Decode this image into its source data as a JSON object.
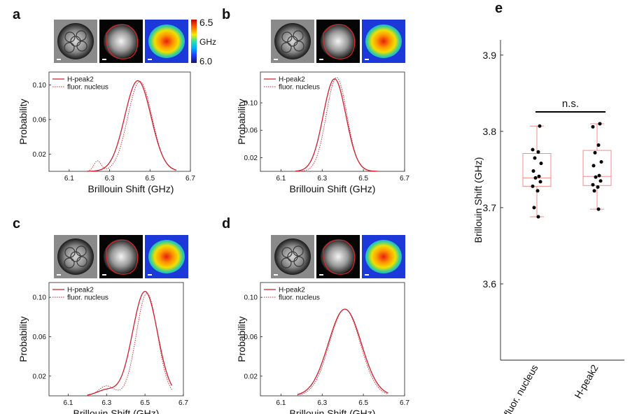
{
  "colors": {
    "curve": "#d21e2d",
    "box": "#f08c8c",
    "points": "#000000",
    "sig_bar": "#000000"
  },
  "colorbar": {
    "max_label": "6.5",
    "unit_label": "GHz",
    "min_label": "6.0"
  },
  "distribution_panels": [
    {
      "panel_label": "a",
      "x_ticks": [
        "6.1",
        "6.3",
        "6.5",
        "6.7"
      ],
      "y_ticks": [
        "0.02",
        "0.06",
        "0.10"
      ],
      "ylim": [
        0,
        0.115
      ],
      "xlim": [
        6.0,
        6.7
      ],
      "xlabel": "Brillouin Shift (GHz)",
      "ylabel": "Probability",
      "legend": [
        "H-peak2",
        "fluor. nucleus"
      ],
      "solid": {
        "mu": 6.44,
        "sigma": 0.065,
        "peak": 0.105,
        "bump_mu": 0,
        "bump_sigma": 0.03,
        "bump_h": 0
      },
      "dotted": {
        "mu": 6.45,
        "sigma": 0.06,
        "peak": 0.104,
        "bump_mu": 6.24,
        "bump_sigma": 0.018,
        "bump_h": 0.012
      },
      "x_range": [
        6.19,
        6.63
      ]
    },
    {
      "panel_label": "b",
      "x_ticks": [
        "6.1",
        "6.3",
        "6.5",
        "6.7"
      ],
      "y_ticks": [
        "0.02",
        "0.06",
        "0.10"
      ],
      "ylim": [
        0,
        0.145
      ],
      "xlim": [
        6.0,
        6.7
      ],
      "xlabel": "Brillouin Shift (GHz)",
      "ylabel": "Probability",
      "legend": [
        "H-peak2",
        "fluor. nucleus"
      ],
      "solid": {
        "mu": 6.36,
        "sigma": 0.055,
        "peak": 0.135,
        "bump_mu": 0,
        "bump_sigma": 0.03,
        "bump_h": 0
      },
      "dotted": {
        "mu": 6.37,
        "sigma": 0.05,
        "peak": 0.137,
        "bump_mu": 0,
        "bump_sigma": 0.03,
        "bump_h": 0
      },
      "x_range": [
        6.17,
        6.57
      ]
    },
    {
      "panel_label": "c",
      "x_ticks": [
        "6.1",
        "6.3",
        "6.5",
        "6.7"
      ],
      "y_ticks": [
        "0.02",
        "0.06",
        "0.10"
      ],
      "ylim": [
        0,
        0.115
      ],
      "xlim": [
        6.0,
        6.7
      ],
      "xlabel": "Brillouin Shift (GHz)",
      "ylabel": "Probability",
      "legend": [
        "H-peak2",
        "fluor. nucleus"
      ],
      "solid": {
        "mu": 6.5,
        "sigma": 0.065,
        "peak": 0.106,
        "bump_mu": 6.3,
        "bump_sigma": 0.05,
        "bump_h": 0.006
      },
      "dotted": {
        "mu": 6.51,
        "sigma": 0.055,
        "peak": 0.104,
        "bump_mu": 6.3,
        "bump_sigma": 0.04,
        "bump_h": 0.01
      },
      "x_range": [
        6.2,
        6.64
      ]
    },
    {
      "panel_label": "d",
      "x_ticks": [
        "6.1",
        "6.3",
        "6.5",
        "6.7"
      ],
      "y_ticks": [
        "0.02",
        "0.06",
        "0.10"
      ],
      "ylim": [
        0,
        0.115
      ],
      "xlim": [
        6.0,
        6.7
      ],
      "xlabel": "Brillouin Shift (GHz)",
      "ylabel": "Probability",
      "legend": [
        "H-peak2",
        "fluor. nucleus"
      ],
      "solid": {
        "mu": 6.41,
        "sigma": 0.08,
        "peak": 0.088,
        "bump_mu": 0,
        "bump_sigma": 0.03,
        "bump_h": 0
      },
      "dotted": {
        "mu": 6.41,
        "sigma": 0.075,
        "peak": 0.088,
        "bump_mu": 0,
        "bump_sigma": 0.03,
        "bump_h": 0
      },
      "x_range": [
        6.18,
        6.62
      ]
    }
  ],
  "chart_data": {
    "type": "box",
    "panel_label": "e",
    "categories": [
      "fluor. nucleus",
      "H-peak2"
    ],
    "ylabel": "Brillouin Shift (GHz)",
    "y_ticks": [
      "3.6",
      "3.7",
      "3.8",
      "3.9"
    ],
    "ylim": [
      3.5,
      3.92
    ],
    "significance": "n.s.",
    "boxes": [
      {
        "name": "fluor. nucleus",
        "min": 3.688,
        "q1": 3.728,
        "median": 3.739,
        "q3": 3.771,
        "max": 3.807,
        "points": [
          3.807,
          3.776,
          3.773,
          3.765,
          3.758,
          3.748,
          3.741,
          3.739,
          3.734,
          3.728,
          3.722,
          3.7,
          3.688
        ]
      },
      {
        "name": "H-peak2",
        "min": 3.698,
        "q1": 3.729,
        "median": 3.741,
        "q3": 3.775,
        "max": 3.81,
        "points": [
          3.81,
          3.806,
          3.782,
          3.772,
          3.76,
          3.755,
          3.742,
          3.74,
          3.735,
          3.73,
          3.727,
          3.722,
          3.698
        ]
      }
    ]
  }
}
